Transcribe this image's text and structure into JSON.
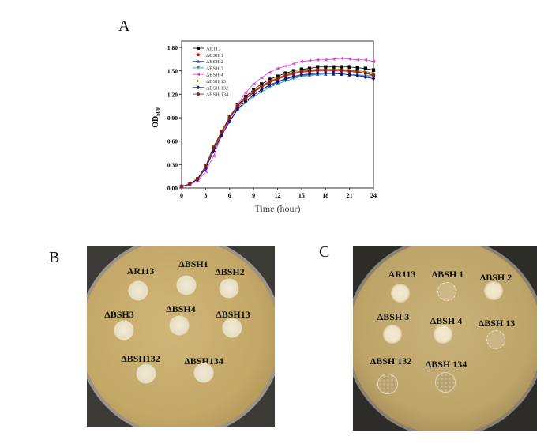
{
  "panels": {
    "a": "A",
    "b": "B",
    "c": "C"
  },
  "chart_data": {
    "type": "line",
    "title": "",
    "xlabel": "Time (hour)",
    "ylabel": "OD600",
    "ylabel_main": "OD",
    "ylabel_sub": "600",
    "xlim": [
      0,
      24
    ],
    "ylim": [
      0,
      1.8
    ],
    "xticks": [
      "0",
      "3",
      "6",
      "9",
      "12",
      "15",
      "18",
      "21",
      "24"
    ],
    "yticks": [
      "0.00",
      "0.30",
      "0.60",
      "0.90",
      "1.20",
      "1.50",
      "1.80"
    ],
    "legend_position": "top-left",
    "x": [
      0,
      1,
      2,
      3,
      4,
      5,
      6,
      7,
      8,
      9,
      10,
      11,
      12,
      13,
      14,
      15,
      16,
      17,
      18,
      19,
      20,
      21,
      22,
      23,
      24
    ],
    "series": [
      {
        "name": "AR113",
        "color": "#000000",
        "marker": "square",
        "values": [
          0.02,
          0.05,
          0.12,
          0.28,
          0.52,
          0.72,
          0.91,
          1.06,
          1.17,
          1.26,
          1.33,
          1.39,
          1.43,
          1.47,
          1.5,
          1.52,
          1.53,
          1.55,
          1.55,
          1.55,
          1.55,
          1.55,
          1.54,
          1.53,
          1.51
        ]
      },
      {
        "name": "ΔBSH 1",
        "color": "#e02020",
        "marker": "circle",
        "values": [
          0.02,
          0.05,
          0.11,
          0.27,
          0.5,
          0.7,
          0.89,
          1.03,
          1.14,
          1.22,
          1.29,
          1.35,
          1.39,
          1.43,
          1.46,
          1.48,
          1.49,
          1.5,
          1.5,
          1.5,
          1.5,
          1.49,
          1.48,
          1.47,
          1.45
        ]
      },
      {
        "name": "ΔBSH 2",
        "color": "#1f3fd6",
        "marker": "triangle-up",
        "values": [
          0.02,
          0.05,
          0.11,
          0.26,
          0.48,
          0.68,
          0.86,
          1.01,
          1.11,
          1.19,
          1.26,
          1.31,
          1.35,
          1.39,
          1.42,
          1.44,
          1.45,
          1.46,
          1.46,
          1.46,
          1.46,
          1.45,
          1.44,
          1.43,
          1.42
        ]
      },
      {
        "name": "ΔBSH 3",
        "color": "#1a9a9a",
        "marker": "triangle-down",
        "values": [
          0.02,
          0.05,
          0.11,
          0.26,
          0.48,
          0.68,
          0.85,
          1.0,
          1.09,
          1.17,
          1.23,
          1.29,
          1.33,
          1.37,
          1.4,
          1.43,
          1.44,
          1.45,
          1.46,
          1.46,
          1.46,
          1.45,
          1.45,
          1.44,
          1.44
        ]
      },
      {
        "name": "ΔBSH 4",
        "color": "#e040e0",
        "marker": "triangle-left",
        "values": [
          0.02,
          0.04,
          0.09,
          0.21,
          0.41,
          0.67,
          0.88,
          1.07,
          1.22,
          1.33,
          1.41,
          1.48,
          1.53,
          1.56,
          1.59,
          1.62,
          1.63,
          1.64,
          1.64,
          1.65,
          1.66,
          1.65,
          1.64,
          1.64,
          1.62
        ]
      },
      {
        "name": "ΔBSH 13",
        "color": "#808000",
        "marker": "triangle-right",
        "values": [
          0.02,
          0.05,
          0.12,
          0.28,
          0.53,
          0.73,
          0.91,
          1.05,
          1.15,
          1.24,
          1.31,
          1.37,
          1.41,
          1.45,
          1.48,
          1.5,
          1.51,
          1.52,
          1.52,
          1.52,
          1.52,
          1.51,
          1.5,
          1.49,
          1.47
        ]
      },
      {
        "name": "ΔBSH 132",
        "color": "#101070",
        "marker": "diamond",
        "values": [
          0.02,
          0.05,
          0.11,
          0.25,
          0.47,
          0.67,
          0.85,
          1.01,
          1.11,
          1.19,
          1.26,
          1.32,
          1.36,
          1.4,
          1.43,
          1.45,
          1.46,
          1.47,
          1.47,
          1.47,
          1.46,
          1.45,
          1.44,
          1.42,
          1.4
        ]
      },
      {
        "name": "ΔBSH 134",
        "color": "#8b1a1a",
        "marker": "circle",
        "values": [
          0.02,
          0.05,
          0.12,
          0.28,
          0.52,
          0.72,
          0.9,
          1.05,
          1.15,
          1.23,
          1.3,
          1.36,
          1.4,
          1.44,
          1.47,
          1.49,
          1.5,
          1.51,
          1.51,
          1.51,
          1.51,
          1.5,
          1.49,
          1.47,
          1.44
        ]
      }
    ]
  },
  "plate_b": {
    "labels": [
      "AR113",
      "ΔBSH1",
      "ΔBSH2",
      "ΔBSH3",
      "ΔBSH4",
      "ΔBSH13",
      "ΔBSH132",
      "ΔBSH134"
    ]
  },
  "plate_c": {
    "labels": [
      "AR113",
      "ΔBSH 1",
      "ΔBSH 2",
      "ΔBSH 3",
      "ΔBSH 4",
      "ΔBSH 13",
      "ΔBSH 132",
      "ΔBSH 134"
    ]
  }
}
